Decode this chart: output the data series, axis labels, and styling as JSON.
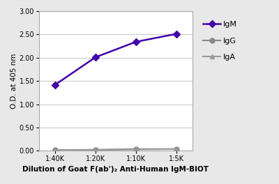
{
  "x_labels": [
    "1:40K",
    "1:20K",
    "1:10K",
    "1:5K"
  ],
  "x_values": [
    1,
    2,
    3,
    4
  ],
  "IgM_values": [
    1.42,
    2.01,
    2.34,
    2.51
  ],
  "IgG_values": [
    0.02,
    0.025,
    0.04,
    0.04
  ],
  "IgA_values": [
    0.02,
    0.02,
    0.03,
    0.04
  ],
  "IgM_color": "#4400aa",
  "IgG_color": "#888888",
  "IgA_color": "#999999",
  "ylabel": "O.D. at 405 nm",
  "xlabel": "Dilution of Goat F(ab')₂ Anti-Human IgM-BIOT",
  "ylim": [
    0.0,
    3.0
  ],
  "yticks": [
    0.0,
    0.5,
    1.0,
    1.5,
    2.0,
    2.5,
    3.0
  ],
  "axis_fontsize": 7.5,
  "tick_fontsize": 7,
  "legend_fontsize": 8,
  "background_color": "#e8e8e8",
  "plot_bg_color": "#ffffff",
  "grid_color": "#cccccc",
  "spine_color": "#aaaaaa"
}
